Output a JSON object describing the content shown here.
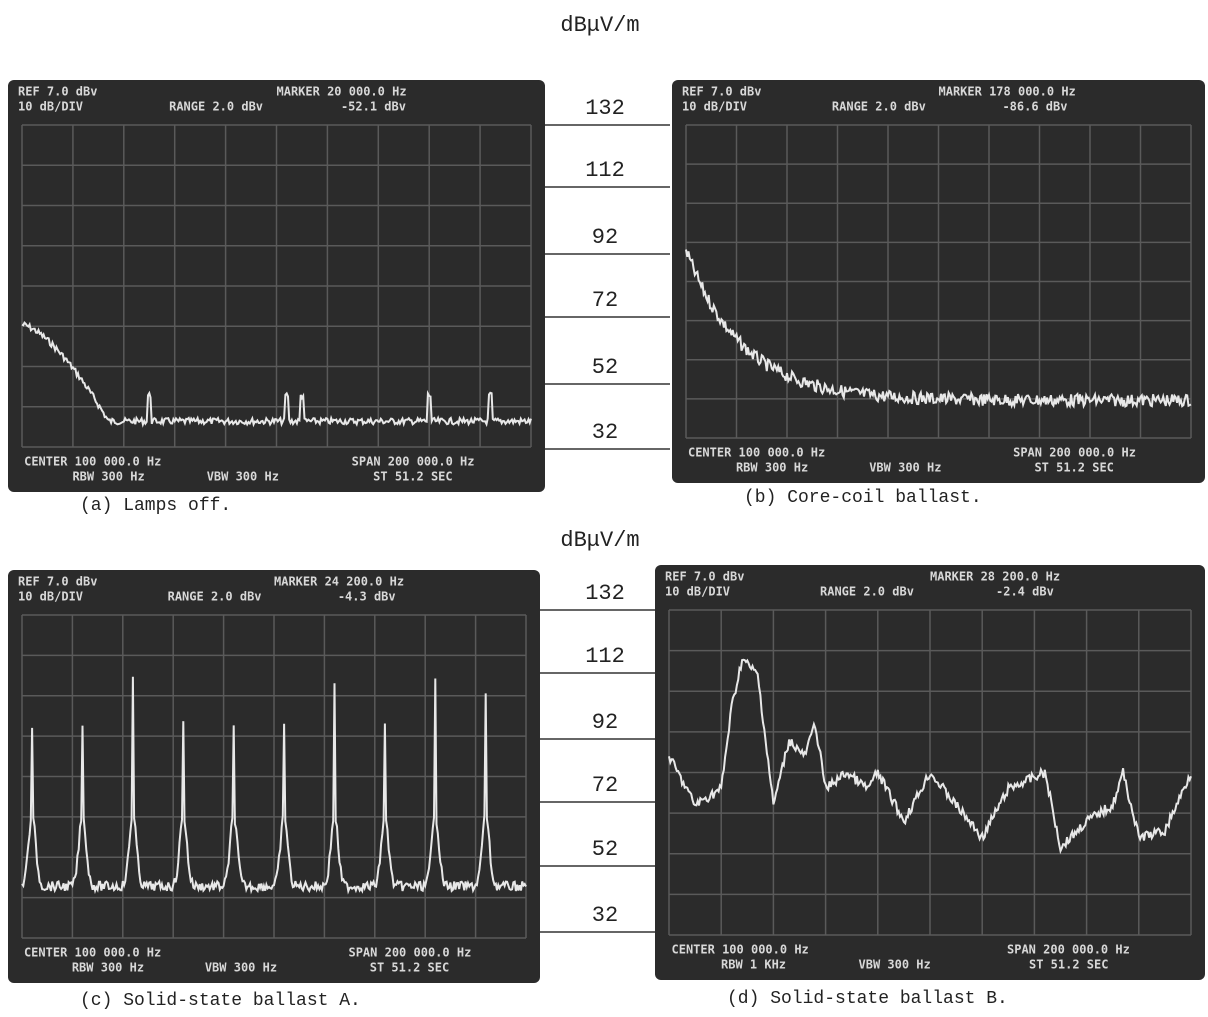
{
  "unit_label": "dBμV/m",
  "scale_labels": [
    132,
    112,
    92,
    72,
    52,
    32
  ],
  "panels": [
    {
      "header": [
        "REF 7.0 dBv",
        "10 dB/DIV",
        "RANGE 2.0 dBv",
        "MARKER 20 000.0 Hz",
        "-52.1 dBv"
      ],
      "footer": [
        "CENTER 100 000.0 Hz",
        "RBW 300 Hz",
        "VBW 300 Hz",
        "SPAN 200 000.0 Hz",
        "ST 51.2 SEC"
      ],
      "caption": "(a) Lamps off."
    },
    {
      "header": [
        "REF 7.0 dBv",
        "10 dB/DIV",
        "RANGE 2.0 dBv",
        "MARKER 178 000.0 Hz",
        "-86.6 dBv"
      ],
      "footer": [
        "CENTER 100 000.0 Hz",
        "RBW 300 Hz",
        "VBW 300 Hz",
        "SPAN 200 000.0 Hz",
        "ST 51.2 SEC"
      ],
      "caption": "(b) Core-coil ballast."
    },
    {
      "header": [
        "REF 7.0 dBv",
        "10 dB/DIV",
        "RANGE 2.0 dBv",
        "MARKER 24 200.0 Hz",
        "-4.3 dBv"
      ],
      "footer": [
        "CENTER 100 000.0 Hz",
        "RBW 300 Hz",
        "VBW 300 Hz",
        "SPAN 200 000.0 Hz",
        "ST 51.2 SEC"
      ],
      "caption": "(c) Solid-state ballast A."
    },
    {
      "header": [
        "REF 7.0 dBv",
        "10 dB/DIV",
        "RANGE 2.0 dBv",
        "MARKER 28 200.0 Hz",
        "-2.4 dBv"
      ],
      "footer": [
        "CENTER 100 000.0 Hz",
        "RBW 1 KHz",
        "VBW 300 Hz",
        "SPAN 200 000.0 Hz",
        "ST 51.2 SEC"
      ],
      "caption": "(d) Solid-state ballast B."
    }
  ]
}
